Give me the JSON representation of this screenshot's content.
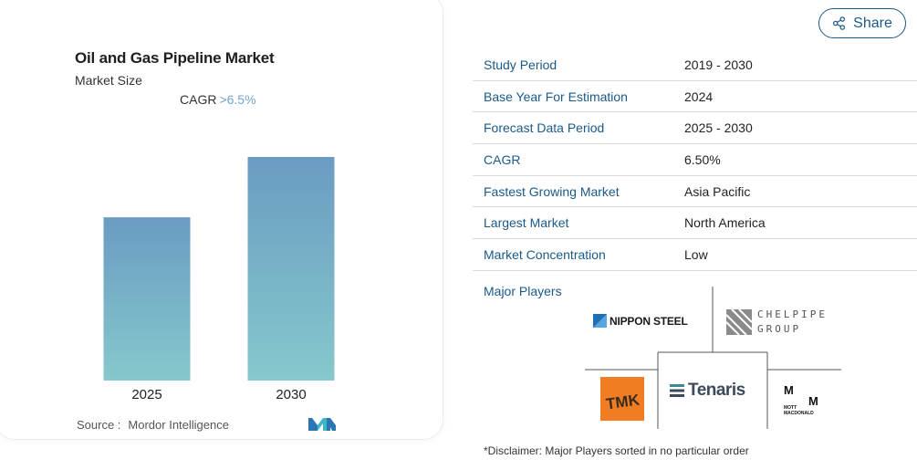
{
  "share": {
    "label": "Share"
  },
  "chart": {
    "title": "Oil and Gas Pipeline Market",
    "subtitle": "Market Size",
    "cagr_label": "CAGR",
    "cagr_value": ">6.5%",
    "source_label": "Source :",
    "source_value": "Mordor Intelligence"
  },
  "chart_data": {
    "type": "bar",
    "title": "Oil and Gas Pipeline Market",
    "subtitle": "Market Size",
    "categories": [
      "2025",
      "2030"
    ],
    "values": [
      73,
      100
    ],
    "xlabel": "",
    "ylabel": "",
    "ylim": [
      0,
      100
    ],
    "grid": false,
    "legend": "none",
    "bar_color_top": "#6a9cc2",
    "bar_color_bottom": "#86c8cc"
  },
  "info_table": [
    {
      "label": "Study Period",
      "value": "2019 - 2030"
    },
    {
      "label": "Base Year For Estimation",
      "value": "2024"
    },
    {
      "label": "Forecast Data Period",
      "value": "2025 - 2030"
    },
    {
      "label": "CAGR",
      "value": "6.50%"
    },
    {
      "label": "Fastest Growing Market",
      "value": "Asia Pacific"
    },
    {
      "label": "Largest Market",
      "value": "North America"
    },
    {
      "label": "Market Concentration",
      "value": "Low"
    }
  ],
  "players": {
    "label": "Major Players",
    "nippon": "NIPPON STEEL",
    "chelpipe_line1": "CHELPIPE",
    "chelpipe_line2": "GROUP",
    "tmk": "TMK",
    "tenaris": "Tenaris",
    "mott_line1": "MOTT",
    "mott_line2": "MACDONALD"
  },
  "disclaimer": "*Disclaimer: Major Players sorted in no particular order",
  "colors": {
    "accent": "#1a5a8a",
    "tmk_orange": "#f07d23",
    "nippon_blue": "#1e6fb5"
  }
}
